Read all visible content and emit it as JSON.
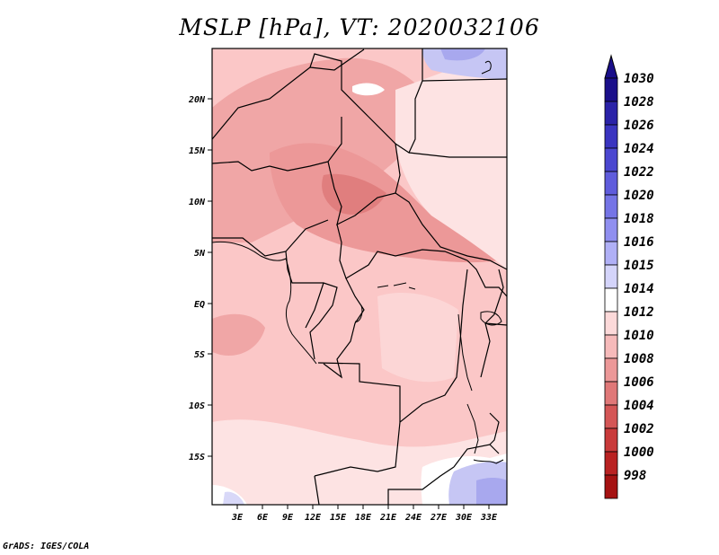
{
  "title": "MSLP [hPa], VT: 2020032106",
  "credit": "GrADS: IGES/COLA",
  "lat_labels": [
    "20N",
    "15N",
    "10N",
    "5N",
    "EQ",
    "5S",
    "10S",
    "15S"
  ],
  "lon_labels": [
    "3E",
    "6E",
    "9E",
    "12E",
    "15E",
    "18E",
    "21E",
    "24E",
    "27E",
    "30E",
    "33E"
  ],
  "colorbar": {
    "levels": [
      "1030",
      "1028",
      "1026",
      "1024",
      "1022",
      "1020",
      "1018",
      "1016",
      "1015",
      "1014",
      "1012",
      "1010",
      "1008",
      "1006",
      "1004",
      "1002",
      "1000",
      "998"
    ],
    "colors": [
      "#1a0f8a",
      "#2a22a8",
      "#3a34c0",
      "#4b47d0",
      "#5f5cdc",
      "#7574e6",
      "#908ff0",
      "#b0b0f6",
      "#d4d4fa",
      "#ffffff",
      "#fcd9d9",
      "#f6baba",
      "#ec9898",
      "#e07878",
      "#d45656",
      "#c93a3a",
      "#b92222",
      "#a51212"
    ],
    "top_cap_color": "#1a0f8a",
    "bottom_cap_color": "#a51212"
  }
}
